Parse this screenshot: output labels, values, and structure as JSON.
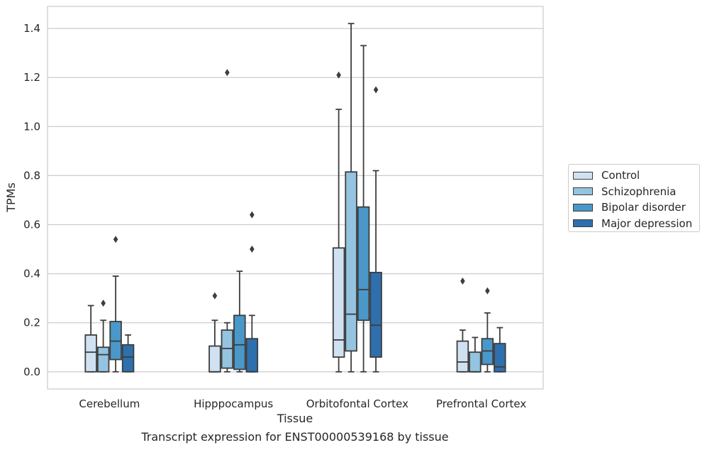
{
  "chart_data": {
    "type": "boxplot",
    "caption": "Transcript expression for ENST00000539168 by tissue",
    "xlabel": "Tissue",
    "ylabel": "TPMs",
    "ylim": [
      -0.07,
      1.49
    ],
    "yticks": [
      0.0,
      0.2,
      0.4,
      0.6,
      0.8,
      1.0,
      1.2,
      1.4
    ],
    "ytick_labels": [
      "0.0",
      "0.2",
      "0.4",
      "0.6",
      "0.8",
      "1.0",
      "1.2",
      "1.4"
    ],
    "grid": "horizontal",
    "categories": [
      "Cerebellum",
      "Hipppocampus",
      "Orbitofontal Cortex",
      "Prefrontal Cortex"
    ],
    "legend_position": "right",
    "series": [
      {
        "name": "Control",
        "color": "#d0e1f2",
        "boxes": [
          {
            "whislo": 0.0,
            "q1": 0.0,
            "med": 0.08,
            "q3": 0.15,
            "whishi": 0.27,
            "fliers": []
          },
          {
            "whislo": 0.0,
            "q1": 0.0,
            "med": 0.0,
            "q3": 0.105,
            "whishi": 0.21,
            "fliers": [
              0.31
            ]
          },
          {
            "whislo": 0.0,
            "q1": 0.06,
            "med": 0.13,
            "q3": 0.505,
            "whishi": 1.07,
            "fliers": [
              1.21
            ]
          },
          {
            "whislo": 0.0,
            "q1": 0.0,
            "med": 0.04,
            "q3": 0.125,
            "whishi": 0.17,
            "fliers": [
              0.37
            ]
          }
        ]
      },
      {
        "name": "Schizophrenia",
        "color": "#94c4df",
        "boxes": [
          {
            "whislo": 0.0,
            "q1": 0.0,
            "med": 0.07,
            "q3": 0.1,
            "whishi": 0.21,
            "fliers": [
              0.28
            ]
          },
          {
            "whislo": 0.0,
            "q1": 0.015,
            "med": 0.095,
            "q3": 0.17,
            "whishi": 0.2,
            "fliers": [
              1.22
            ]
          },
          {
            "whislo": 0.0,
            "q1": 0.085,
            "med": 0.235,
            "q3": 0.815,
            "whishi": 1.42,
            "fliers": []
          },
          {
            "whislo": 0.0,
            "q1": 0.0,
            "med": 0.0,
            "q3": 0.08,
            "whishi": 0.14,
            "fliers": []
          }
        ]
      },
      {
        "name": "Bipolar disorder",
        "color": "#4a98c9",
        "boxes": [
          {
            "whislo": 0.0,
            "q1": 0.05,
            "med": 0.125,
            "q3": 0.205,
            "whishi": 0.39,
            "fliers": [
              0.54
            ]
          },
          {
            "whislo": 0.0,
            "q1": 0.01,
            "med": 0.11,
            "q3": 0.23,
            "whishi": 0.41,
            "fliers": []
          },
          {
            "whislo": 0.0,
            "q1": 0.21,
            "med": 0.335,
            "q3": 0.672,
            "whishi": 1.33,
            "fliers": []
          },
          {
            "whislo": 0.0,
            "q1": 0.03,
            "med": 0.085,
            "q3": 0.135,
            "whishi": 0.24,
            "fliers": [
              0.33
            ]
          }
        ]
      },
      {
        "name": "Major depression",
        "color": "#2e6fad",
        "boxes": [
          {
            "whislo": 0.0,
            "q1": 0.0,
            "med": 0.06,
            "q3": 0.11,
            "whishi": 0.15,
            "fliers": []
          },
          {
            "whislo": 0.0,
            "q1": 0.0,
            "med": 0.0,
            "q3": 0.135,
            "whishi": 0.23,
            "fliers": [
              0.5,
              0.64
            ]
          },
          {
            "whislo": 0.0,
            "q1": 0.06,
            "med": 0.19,
            "q3": 0.405,
            "whishi": 0.82,
            "fliers": [
              1.15
            ]
          },
          {
            "whislo": 0.0,
            "q1": 0.0,
            "med": 0.02,
            "q3": 0.115,
            "whishi": 0.18,
            "fliers": []
          }
        ]
      }
    ]
  }
}
